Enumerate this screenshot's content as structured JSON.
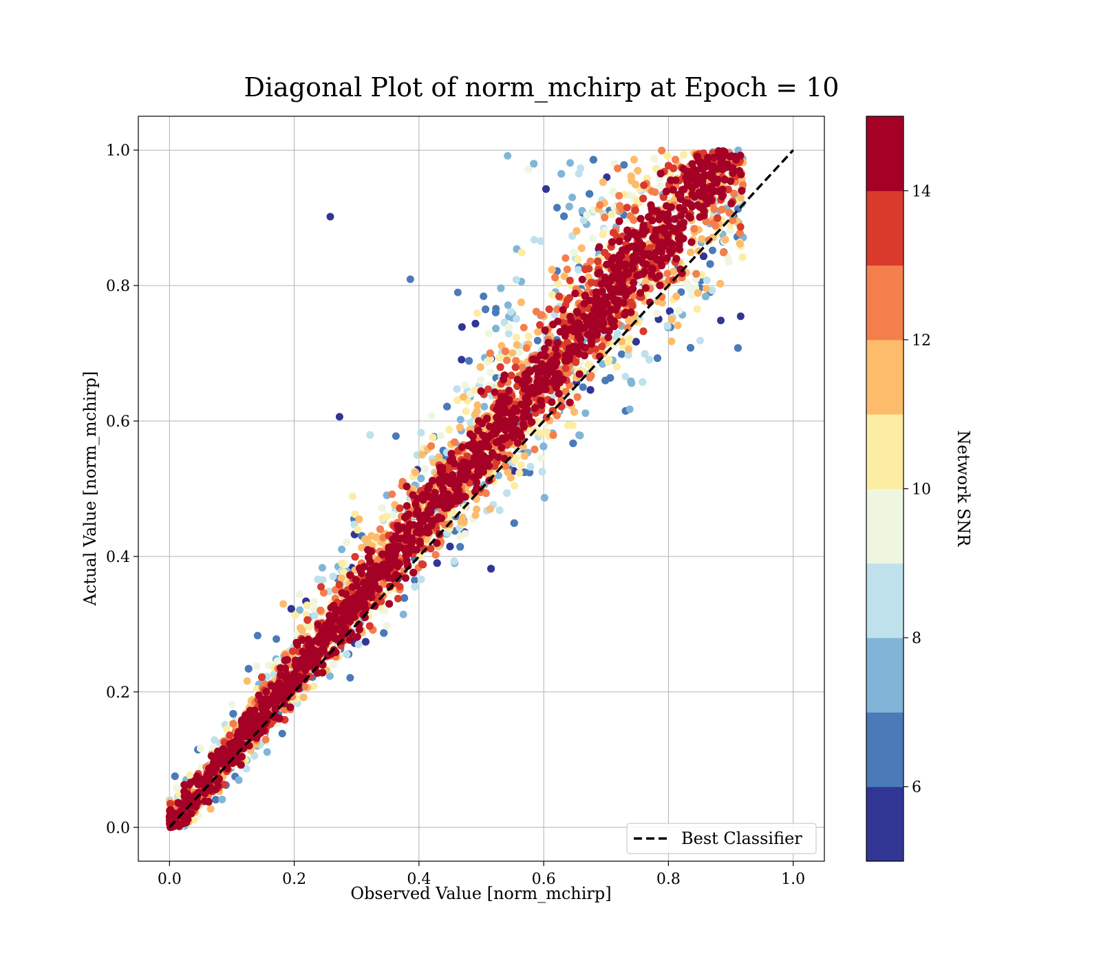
{
  "chart_data": {
    "type": "scatter",
    "title": "Diagonal Plot of norm_mchirp at Epoch = 10",
    "xlabel": "Observed Value [norm_mchirp]",
    "ylabel": "Actual Value [norm_mchirp]",
    "xlim": [
      -0.05,
      1.05
    ],
    "ylim": [
      -0.05,
      1.05
    ],
    "x_ticks": [
      "0.0",
      "0.2",
      "0.4",
      "0.6",
      "0.8",
      "1.0"
    ],
    "y_ticks": [
      "0.0",
      "0.2",
      "0.4",
      "0.6",
      "0.8",
      "1.0"
    ],
    "grid": true,
    "legend": {
      "position": "lower-right",
      "entries": [
        {
          "label": "Best Classifier",
          "style": "dashed",
          "color": "#000000"
        }
      ]
    },
    "reference_line": {
      "name": "Best Classifier",
      "x": [
        0,
        1
      ],
      "y": [
        0,
        1
      ],
      "style": "dashed"
    },
    "colorbar": {
      "label": "Network SNR",
      "range": [
        5,
        15
      ],
      "ticks": [
        "6",
        "8",
        "10",
        "12",
        "14"
      ],
      "tick_values": [
        6,
        8,
        10,
        12,
        14
      ],
      "colors": [
        "#313695",
        "#4575b4",
        "#74add1",
        "#abd9e9",
        "#e0f3f8",
        "#fee090",
        "#fdae61",
        "#f46d43",
        "#d73027",
        "#a50026"
      ],
      "colors_rendered": [
        "#313695",
        "#4a7ab7",
        "#80b5d7",
        "#bfe1ec",
        "#eef6e0",
        "#fdeca4",
        "#fdbc6c",
        "#f47f4d",
        "#d93a2c",
        "#a50026"
      ]
    },
    "series": [
      {
        "description_free": true,
        "points_summary": {
          "high_snr_band": "points with Network SNR >= 14 lie along the diagonal y = x from (0,0) to about (0.9,1.0)",
          "low_snr_spread": "points with Network SNR 5-9 spread widely above and below the diagonal",
          "x_extent": [
            0.0,
            0.92
          ],
          "y_extent": [
            0.0,
            1.0
          ]
        }
      }
    ]
  }
}
